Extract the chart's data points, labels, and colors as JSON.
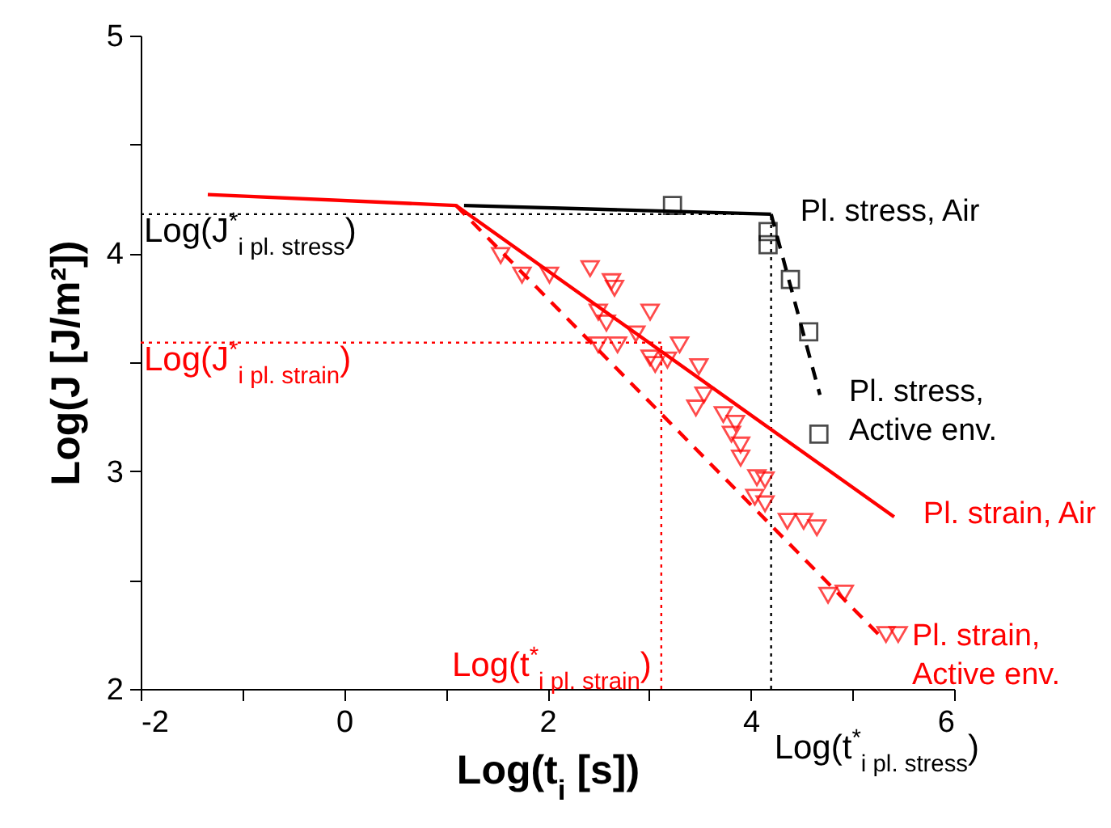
{
  "chart_data": {
    "type": "scatter",
    "xlabel": "Log(t$_{i}$ [s])",
    "ylabel": "Log(J [J/m²])",
    "xlim": [
      -2,
      6
    ],
    "ylim": [
      2,
      5
    ],
    "xticks": [
      -2,
      {
        "value": -1,
        "label": null
      },
      0,
      {
        "value": 1,
        "label": null
      },
      2,
      {
        "value": 3,
        "label": null
      },
      4,
      {
        "value": 5,
        "label": null
      },
      6
    ],
    "yticks": [
      2,
      {
        "value": 2.5,
        "label": null
      },
      3,
      {
        "value": 3.5,
        "label": null
      },
      4,
      {
        "value": 4.5,
        "label": null
      },
      5
    ],
    "grid": false,
    "series": [
      {
        "name": "Pl. stress, Air",
        "type": "line",
        "color": "#000000",
        "line_style": "solid",
        "x": [
          1.18,
          4.2
        ],
        "values": [
          4.22,
          4.18
        ]
      },
      {
        "name": "Pl. stress,\nActive env.",
        "type": "line",
        "color": "#000000",
        "line_style": "dashed",
        "x": [
          4.2,
          4.68
        ],
        "values": [
          4.18,
          3.35
        ]
      },
      {
        "color": "#000000",
        "marker": "square",
        "x": [
          3.23,
          4.17,
          4.17,
          4.39,
          4.57,
          4.67
        ],
        "values": [
          4.22,
          4.1,
          4.04,
          3.88,
          3.64,
          3.17
        ]
      },
      {
        "name": "Pl. strain, Air",
        "type": "line",
        "color": "#ff0000",
        "line_style": "solid",
        "x": [
          -1.34,
          1.1,
          5.41
        ],
        "values": [
          4.27,
          4.22,
          2.79
        ]
      },
      {
        "name": "Pl. strain,\nActive env.",
        "type": "line",
        "color": "#ff0000",
        "line_style": "dashed",
        "x": [
          1.1,
          5.3
        ],
        "values": [
          4.22,
          2.23
        ]
      },
      {
        "color": "#ff0000",
        "marker": "triangle",
        "x": [
          1.54,
          1.75,
          2.02,
          2.42,
          2.63,
          2.5,
          2.58,
          3.01,
          2.5,
          2.69,
          2.87,
          3.01,
          3.18,
          3.3,
          2.66,
          3.06,
          3.49,
          3.54,
          3.46,
          3.73,
          3.85,
          3.81,
          3.9,
          3.9,
          4.06,
          4.14,
          4.04,
          4.14,
          4.36,
          4.52,
          4.65,
          4.76,
          4.92,
          5.33,
          5.45
        ],
        "values": [
          3.99,
          3.9,
          3.9,
          3.93,
          3.87,
          3.73,
          3.68,
          3.73,
          3.58,
          3.58,
          3.63,
          3.52,
          3.51,
          3.58,
          3.84,
          3.49,
          3.48,
          3.35,
          3.29,
          3.26,
          3.22,
          3.17,
          3.12,
          3.06,
          2.97,
          2.96,
          2.88,
          2.85,
          2.77,
          2.77,
          2.74,
          2.43,
          2.44,
          2.25,
          2.25
        ]
      }
    ],
    "ref_lines": [
      {
        "axis": "y",
        "value": 4.18,
        "label": "Log(J$^{*}$$_{i pl. stress}$)",
        "color": "#000000",
        "line_style": "dotted"
      },
      {
        "axis": "y",
        "value": 3.59,
        "label": "Log(J$^{*}$$_{i pl. strain}$)",
        "color": "#ff0000",
        "line_style": "dotted"
      },
      {
        "axis": "x",
        "value": 3.12,
        "label": "Log(t$^{*}$$_{i pl. strain}$)",
        "color": "#ff0000",
        "line_style": "dotted"
      },
      {
        "axis": "x",
        "value": 4.2,
        "label": "Log(t$^{*}$$_{i pl. stress}$)",
        "color": "#000000",
        "line_style": "dotted"
      }
    ]
  }
}
